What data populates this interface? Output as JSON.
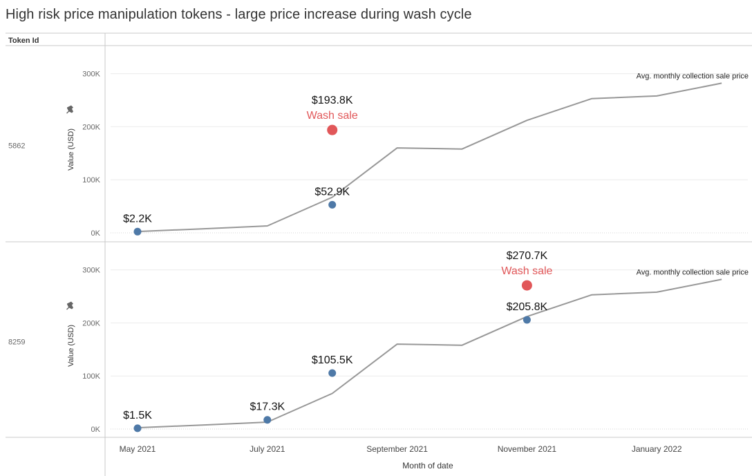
{
  "title": "High risk price manipulation tokens - large price increase during wash cycle",
  "row_header": "Token Id",
  "colors": {
    "line": "#979797",
    "point": "#4e79a7",
    "wash": "#e15759",
    "grid": "#ececec",
    "divider": "#c8c8c8",
    "text": "#333333",
    "muted": "#666666"
  },
  "chart_data": {
    "type": "line",
    "x": [
      "May 2021",
      "Jun 2021",
      "Jul 2021",
      "Aug 2021",
      "Sep 2021",
      "Oct 2021",
      "Nov 2021",
      "Dec 2021",
      "Jan 2022",
      "Feb 2022"
    ],
    "x_ticks": [
      "May 2021",
      "July 2021",
      "September 2021",
      "November 2021",
      "January 2022"
    ],
    "xlabel": "Month of date",
    "ylabel": "Value (USD)",
    "ylim": [
      0,
      340000
    ],
    "y_ticks": [
      0,
      100000,
      200000,
      300000
    ],
    "y_tick_labels": [
      "0K",
      "100K",
      "200K",
      "300K"
    ],
    "line_label": "Avg. monthly collection sale price",
    "avg_price": [
      2500,
      7500,
      13000,
      67000,
      160000,
      158000,
      212000,
      253000,
      258000,
      282000
    ],
    "panels": [
      {
        "token_id": "5862",
        "sales": [
          {
            "month": "May 2021",
            "value": 2200,
            "label": "$2.2K"
          },
          {
            "month": "Aug 2021",
            "value": 52900,
            "label": "$52.9K"
          }
        ],
        "wash_sale": {
          "month": "Aug 2021",
          "value": 193800,
          "label": "$193.8K",
          "tag": "Wash sale"
        }
      },
      {
        "token_id": "8259",
        "sales": [
          {
            "month": "May 2021",
            "value": 1500,
            "label": "$1.5K"
          },
          {
            "month": "Jul 2021",
            "value": 17300,
            "label": "$17.3K"
          },
          {
            "month": "Aug 2021",
            "value": 105500,
            "label": "$105.5K"
          },
          {
            "month": "Nov 2021",
            "value": 205800,
            "label": "$205.8K"
          }
        ],
        "wash_sale": {
          "month": "Nov 2021",
          "value": 270700,
          "label": "$270.7K",
          "tag": "Wash sale"
        }
      }
    ]
  }
}
